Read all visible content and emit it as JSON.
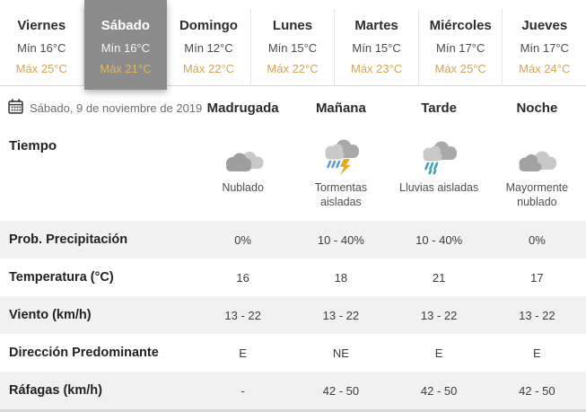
{
  "colors": {
    "selected_tab_bg": "#8c8c8c",
    "max_temp_gold": "#d2a458",
    "row_alt_bg": "#f1f1f1",
    "rain_blue": "#5e9dc8",
    "rain_teal": "#3aa4bd",
    "lightning_gold": "#e9a91e"
  },
  "tabs": [
    {
      "day": "Viernes",
      "min": "Mín 16°C",
      "max": "Máx 25°C",
      "selected": false
    },
    {
      "day": "Sábado",
      "min": "Mín 16°C",
      "max": "Máx 21°C",
      "selected": true
    },
    {
      "day": "Domingo",
      "min": "Mín 12°C",
      "max": "Máx 22°C",
      "selected": false
    },
    {
      "day": "Lunes",
      "min": "Mín 15°C",
      "max": "Máx 22°C",
      "selected": false
    },
    {
      "day": "Martes",
      "min": "Mín 15°C",
      "max": "Máx 23°C",
      "selected": false
    },
    {
      "day": "Miércoles",
      "min": "Mín 17°C",
      "max": "Máx 25°C",
      "selected": false
    },
    {
      "day": "Jueves",
      "min": "Mín 17°C",
      "max": "Máx 24°C",
      "selected": false
    }
  ],
  "date_header": {
    "icon": "calendar",
    "date": "Sábado, 9 de noviembre de 2019"
  },
  "columns": [
    "Madrugada",
    "Mañana",
    "Tarde",
    "Noche"
  ],
  "weather": {
    "label": "Tiempo",
    "cells": [
      {
        "icon": "cloudy",
        "label": "Nublado"
      },
      {
        "icon": "storm",
        "label": "Tormentas aisladas"
      },
      {
        "icon": "rain",
        "label": "Lluvias aisladas"
      },
      {
        "icon": "mostly-cloudy",
        "label": "Mayormente nublado"
      }
    ]
  },
  "rows": [
    {
      "label": "Prob. Precipitación",
      "values": [
        "0%",
        "10 - 40%",
        "10 - 40%",
        "0%"
      ]
    },
    {
      "label": "Temperatura (°C)",
      "values": [
        "16",
        "18",
        "21",
        "17"
      ]
    },
    {
      "label": "Viento (km/h)",
      "values": [
        "13 - 22",
        "13 - 22",
        "13 - 22",
        "13 - 22"
      ]
    },
    {
      "label": "Dirección Predominante",
      "values": [
        "E",
        "NE",
        "E",
        "E"
      ]
    },
    {
      "label": "Ráfagas (km/h)",
      "values": [
        "-",
        "42 - 50",
        "42 - 50",
        "42 - 50"
      ]
    }
  ]
}
